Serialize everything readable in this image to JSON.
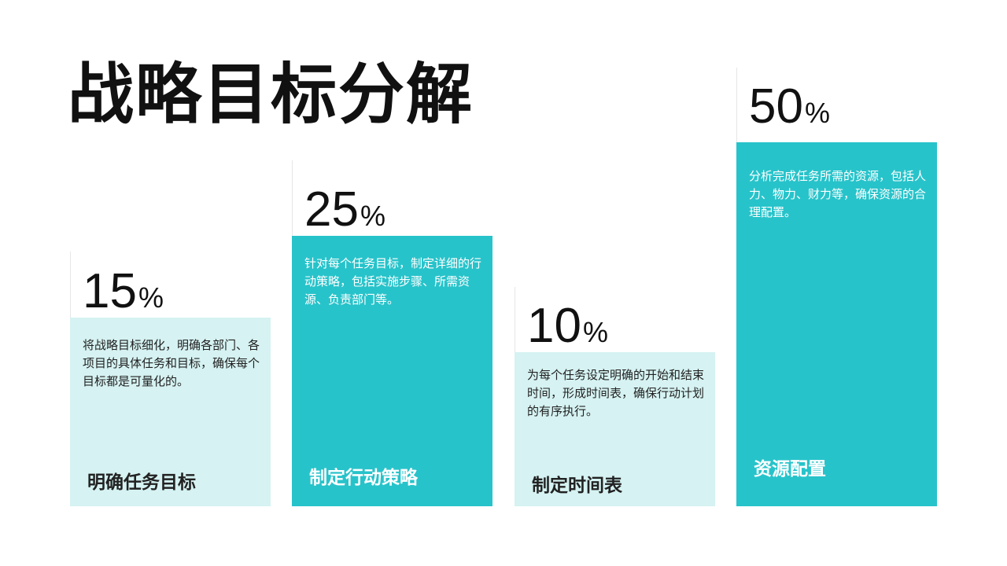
{
  "title": "战略目标分解",
  "colors": {
    "dark_teal": "#27c3ca",
    "light_teal": "#d6f2f2",
    "text_dark": "#111111"
  },
  "cards": [
    {
      "percent": "15",
      "percent_symbol": "%",
      "description": "将战略目标细化，明确各部门、各项目的具体任务和目标，确保每个目标都是可量化的。",
      "label": "明确任务目标"
    },
    {
      "percent": "25",
      "percent_symbol": "%",
      "description": "针对每个任务目标，制定详细的行动策略，包括实施步骤、所需资源、负责部门等。",
      "label": "制定行动策略"
    },
    {
      "percent": "10",
      "percent_symbol": "%",
      "description": "为每个任务设定明确的开始和结束时间，形成时间表，确保行动计划的有序执行。",
      "label": "制定时间表"
    },
    {
      "percent": "50",
      "percent_symbol": "%",
      "description": "分析完成任务所需的资源，包括人力、物力、财力等，确保资源的合理配置。",
      "label": "资源配置"
    }
  ]
}
